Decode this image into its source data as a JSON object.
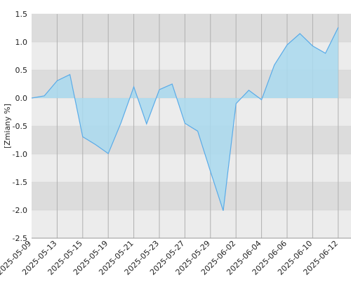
{
  "chart_data": {
    "type": "area",
    "y_label": "[Zmiany %]",
    "categories": [
      "2025-05-09",
      null,
      "2025-05-13",
      null,
      "2025-05-15",
      null,
      "2025-05-19",
      null,
      "2025-05-21",
      null,
      "2025-05-23",
      null,
      "2025-05-27",
      null,
      "2025-05-29",
      null,
      "2025-06-02",
      null,
      "2025-06-04",
      null,
      "2025-06-06",
      null,
      "2025-06-10",
      null,
      "2025-06-12"
    ],
    "values": [
      0,
      0.04,
      0.31,
      0.42,
      -0.69,
      -0.83,
      -0.99,
      -0.44,
      0.2,
      -0.46,
      0.15,
      0.25,
      -0.45,
      -0.59,
      -1.31,
      -2.01,
      -0.1,
      0.14,
      -0.03,
      0.59,
      0.95,
      1.15,
      0.93,
      0.8,
      1.26
    ],
    "color": "#5aabe8",
    "fill": "#a9d9ef",
    "ylim": [
      -2.5,
      1.5
    ],
    "yticks": [
      1.5,
      {
        "value": 1,
        "label": "1.0"
      },
      0.5,
      {
        "value": 0,
        "label": "0.0"
      },
      -0.5,
      {
        "value": -1,
        "label": "-1.0"
      },
      -1.5,
      {
        "value": -2,
        "label": "-2.0"
      },
      -2.5
    ],
    "grid": true
  }
}
